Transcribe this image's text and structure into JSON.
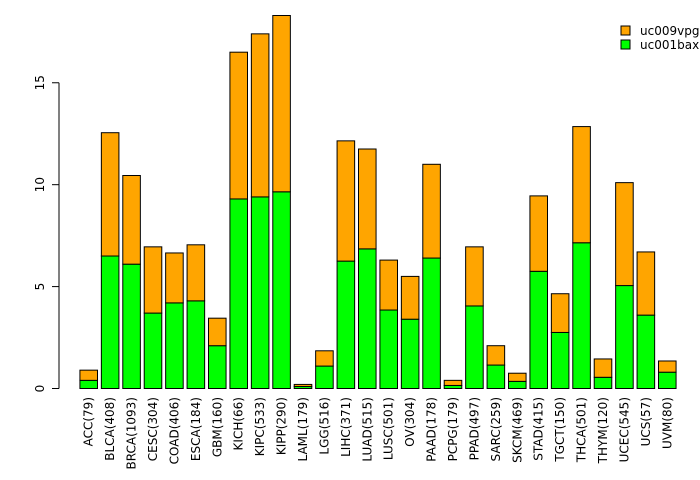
{
  "chart_data": {
    "type": "bar",
    "stacked": true,
    "title": "",
    "xlabel": "",
    "ylabel": "",
    "ylim": [
      0,
      18.3
    ],
    "yticks": [
      0,
      5,
      10,
      15
    ],
    "legend_position": "top-right",
    "categories": [
      "ACC(79)",
      "BLCA(408)",
      "BRCA(1093)",
      "CESC(304)",
      "COAD(406)",
      "ESCA(184)",
      "GBM(160)",
      "KICH(66)",
      "KIPC(533)",
      "KIPP(290)",
      "LAML(179)",
      "LGG(516)",
      "LIHC(371)",
      "LUAD(515)",
      "LUSC(501)",
      "OV(304)",
      "PAAD(178)",
      "PCPG(179)",
      "PPAD(497)",
      "SARC(259)",
      "SKCM(469)",
      "STAD(415)",
      "TGCT(150)",
      "THCA(501)",
      "THYM(120)",
      "UCEC(545)",
      "UCS(57)",
      "UVM(80)"
    ],
    "series": [
      {
        "name": "uc001bax",
        "color": "#00ff00",
        "values": [
          0.4,
          6.5,
          6.1,
          3.7,
          4.2,
          4.3,
          2.1,
          9.3,
          9.4,
          9.65,
          0.1,
          1.1,
          6.25,
          6.85,
          3.85,
          3.4,
          6.4,
          0.15,
          4.05,
          1.15,
          0.35,
          5.75,
          2.75,
          7.15,
          0.55,
          5.05,
          3.6,
          0.8
        ]
      },
      {
        "name": "uc009vpg",
        "color": "#ffa500",
        "values": [
          0.5,
          6.05,
          4.35,
          3.25,
          2.45,
          2.75,
          1.35,
          7.2,
          8.0,
          8.65,
          0.1,
          0.75,
          5.9,
          4.9,
          2.45,
          2.1,
          4.6,
          0.25,
          2.9,
          0.95,
          0.4,
          3.7,
          1.9,
          5.7,
          0.9,
          5.05,
          3.1,
          0.55
        ]
      }
    ],
    "legend_entries": [
      "uc009vpg",
      "uc001bax"
    ]
  }
}
